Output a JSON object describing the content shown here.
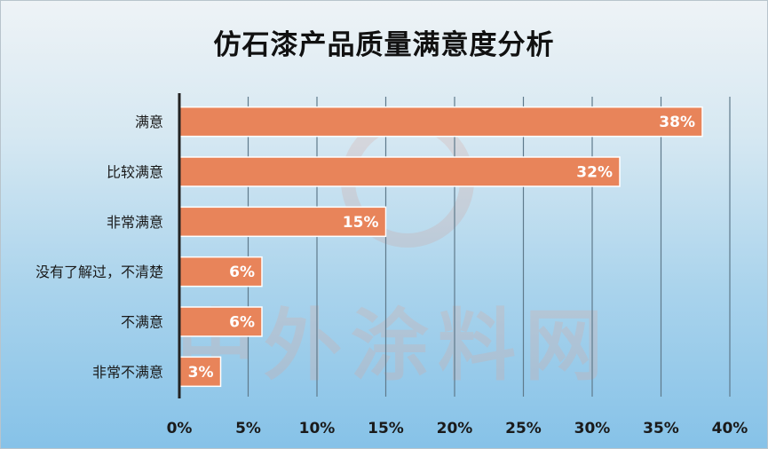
{
  "title": "仿石漆产品质量满意度分析",
  "watermark": "中外涂料网",
  "colors": {
    "bar": "#e8845a",
    "bar_stroke": "#ffffff",
    "axis": "#222222",
    "grid": "#5f7a8c",
    "label_text": "#ffffff"
  },
  "chart_data": {
    "type": "bar",
    "orientation": "horizontal",
    "title": "仿石漆产品质量满意度分析",
    "categories": [
      "满意",
      "比较满意",
      "非常满意",
      "没有了解过，不清楚",
      "不满意",
      "非常不满意"
    ],
    "values": [
      38,
      32,
      15,
      6,
      6,
      3
    ],
    "data_labels": [
      "38%",
      "32%",
      "15%",
      "6%",
      "6%",
      "3%"
    ],
    "xlim": [
      0,
      40
    ],
    "x_ticks": [
      0,
      5,
      10,
      15,
      20,
      25,
      30,
      35,
      40
    ],
    "x_tick_labels": [
      "0%",
      "5%",
      "10%",
      "15%",
      "20%",
      "25%",
      "30%",
      "35%",
      "40%"
    ],
    "xlabel": "",
    "ylabel": "",
    "grid": true,
    "legend": "none"
  }
}
